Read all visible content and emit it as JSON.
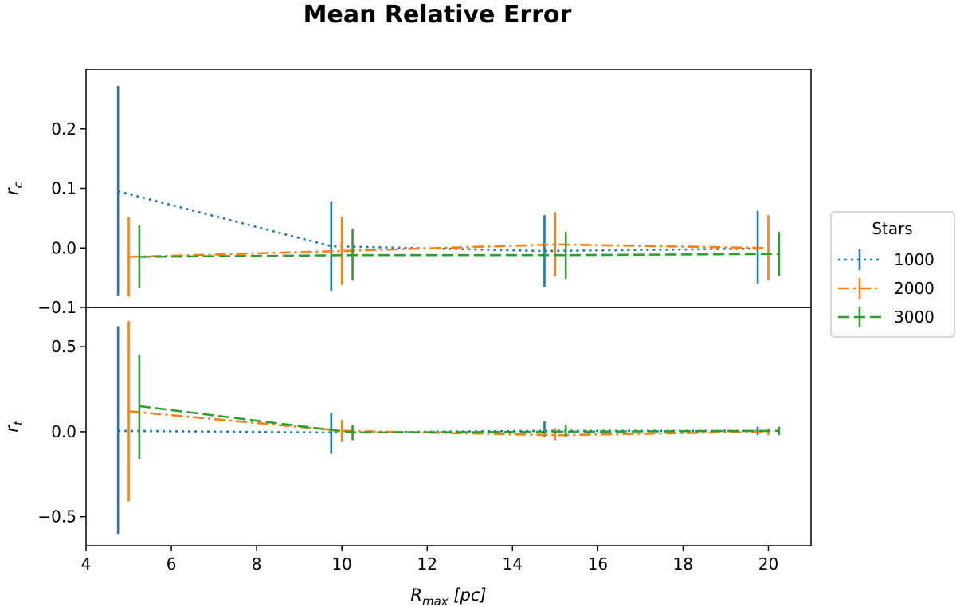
{
  "chart_data": {
    "type": "line",
    "title": "Mean Relative Error",
    "xlabel": {
      "main": "R",
      "sub": "max",
      "rest": " [pc]"
    },
    "xlim": [
      4,
      21
    ],
    "xticks": [
      4,
      6,
      8,
      10,
      12,
      14,
      16,
      18,
      20
    ],
    "xtick_labels": [
      "4",
      "6",
      "8",
      "10",
      "12",
      "14",
      "16",
      "18",
      "20"
    ],
    "grid": false,
    "legend": {
      "title": "Stars",
      "placement": "outside-right",
      "entries": [
        "1000",
        "2000",
        "3000"
      ]
    },
    "colors": {
      "1000": "#1f77b4",
      "2000": "#ff7f0e",
      "3000": "#2ca02c"
    },
    "line_styles": {
      "1000": "dotted",
      "2000": "dash-dot",
      "3000": "dashed"
    },
    "panels": [
      {
        "ylabel": {
          "main": "r",
          "sub": "c"
        },
        "ylim": [
          -0.1,
          0.3
        ],
        "yticks": [
          -0.1,
          0.0,
          0.1,
          0.2
        ],
        "ytick_labels": [
          "−0.1",
          "0.0",
          "0.1",
          "0.2"
        ],
        "series": [
          {
            "name": "1000",
            "x": [
              4.75,
              9.75,
              14.75,
              19.75
            ],
            "y": [
              0.095,
              0.003,
              -0.005,
              -0.001
            ],
            "yerr_low": [
              -0.08,
              -0.072,
              -0.065,
              -0.06
            ],
            "yerr_high": [
              0.272,
              0.078,
              0.055,
              0.062
            ]
          },
          {
            "name": "2000",
            "x": [
              5.0,
              10.0,
              15.0,
              20.0
            ],
            "y": [
              -0.015,
              -0.005,
              0.006,
              0.0
            ],
            "yerr_low": [
              -0.082,
              -0.062,
              -0.048,
              -0.055
            ],
            "yerr_high": [
              0.052,
              0.053,
              0.06,
              0.055
            ]
          },
          {
            "name": "3000",
            "x": [
              5.25,
              10.25,
              15.25,
              20.25
            ],
            "y": [
              -0.015,
              -0.012,
              -0.012,
              -0.01
            ],
            "yerr_low": [
              -0.067,
              -0.055,
              -0.052,
              -0.047
            ],
            "yerr_high": [
              0.038,
              0.032,
              0.027,
              0.027
            ]
          }
        ]
      },
      {
        "ylabel": {
          "main": "r",
          "sub": "t"
        },
        "ylim": [
          -0.67,
          0.73
        ],
        "yticks": [
          -0.5,
          0.0,
          0.5
        ],
        "ytick_labels": [
          "−0.5",
          "0.0",
          "0.5"
        ],
        "series": [
          {
            "name": "1000",
            "x": [
              4.75,
              9.75,
              14.75,
              19.75
            ],
            "y": [
              0.005,
              -0.005,
              0.005,
              0.005
            ],
            "yerr_low": [
              -0.6,
              -0.13,
              -0.03,
              -0.02
            ],
            "yerr_high": [
              0.62,
              0.11,
              0.06,
              0.03
            ]
          },
          {
            "name": "2000",
            "x": [
              5.0,
              10.0,
              15.0,
              20.0
            ],
            "y": [
              0.12,
              0.005,
              -0.02,
              0.0
            ],
            "yerr_low": [
              -0.41,
              -0.06,
              -0.05,
              -0.02
            ],
            "yerr_high": [
              0.65,
              0.07,
              0.02,
              0.02
            ]
          },
          {
            "name": "3000",
            "x": [
              5.25,
              10.25,
              15.25,
              20.25
            ],
            "y": [
              0.15,
              -0.005,
              0.0,
              0.005
            ],
            "yerr_low": [
              -0.16,
              -0.05,
              -0.03,
              -0.02
            ],
            "yerr_high": [
              0.45,
              0.04,
              0.04,
              0.03
            ]
          }
        ]
      }
    ]
  }
}
